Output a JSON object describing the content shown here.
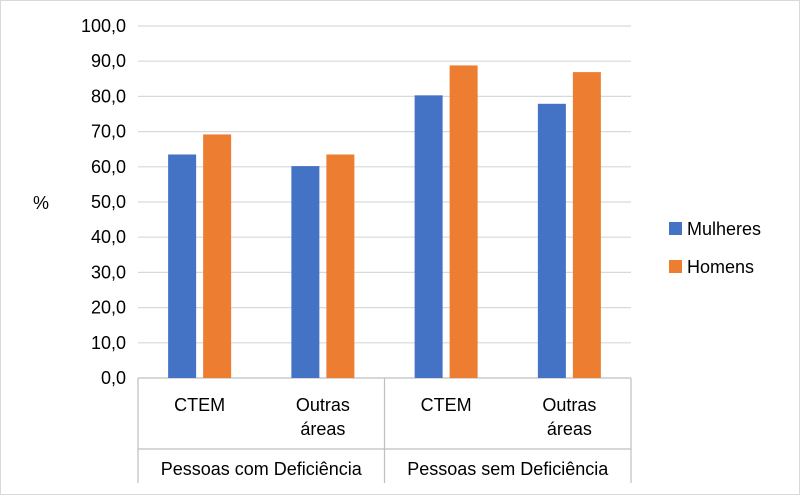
{
  "chart_data": {
    "type": "bar",
    "title": "",
    "xlabel": "",
    "ylabel": "%",
    "ylim": [
      0,
      100
    ],
    "yticks": [
      "0,0",
      "10,0",
      "20,0",
      "30,0",
      "40,0",
      "50,0",
      "60,0",
      "70,0",
      "80,0",
      "90,0",
      "100,0"
    ],
    "grid": true,
    "legend_position": "right",
    "groups": [
      {
        "label": "Pessoas com Deficiência",
        "categories": [
          "CTEM",
          "Outras áreas"
        ]
      },
      {
        "label": "Pessoas sem Deficiência",
        "categories": [
          "CTEM",
          "Outras áreas"
        ]
      }
    ],
    "categories": [
      "CTEM",
      "Outras áreas",
      "CTEM",
      "Outras áreas"
    ],
    "series": [
      {
        "name": "Mulheres",
        "color": "#4472c4",
        "values": [
          63.5,
          60.2,
          80.3,
          77.9
        ]
      },
      {
        "name": "Homens",
        "color": "#ed7d31",
        "values": [
          69.2,
          63.5,
          88.8,
          86.9
        ]
      }
    ]
  }
}
